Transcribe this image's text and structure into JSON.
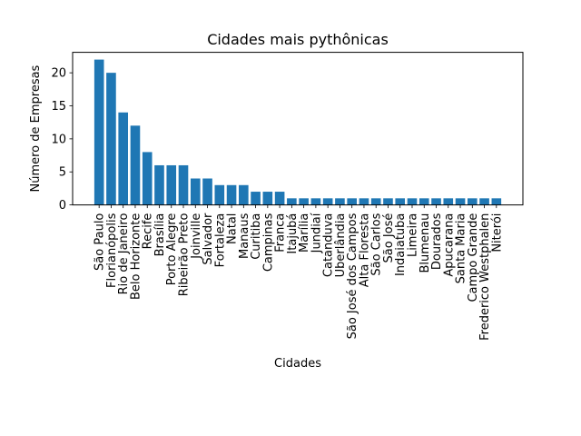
{
  "chart_data": {
    "type": "bar",
    "title": "Cidades mais pythônicas",
    "xlabel": "Cidades",
    "ylabel": "Número de Empresas",
    "ylim": [
      0,
      23.1
    ],
    "yticks": [
      0,
      5,
      10,
      15,
      20
    ],
    "bar_color": "#1f77b4",
    "grid": false,
    "categories": [
      "São Paulo",
      "Florianópolis",
      "Rio de Janeiro",
      "Belo Horizonte",
      "Recife",
      "Brasília",
      "Porto Alegre",
      "Ribeirão Preto",
      "Joinville",
      "Salvador",
      "Fortaleza",
      "Natal",
      "Manaus",
      "Curitiba",
      "Campinas",
      "Franca",
      "Itajubá",
      "Marília",
      "Jundiaí",
      "Catanduva",
      "Uberlândia",
      "São José dos Campos",
      "Alta Floresta",
      "São Carlos",
      "São José",
      "Indaiatuba",
      "Limeira",
      "Blumenau",
      "Dourados",
      "Apucarana",
      "Santa Maria",
      "Campo Grande",
      "Frederico Westphalen",
      "Niterói"
    ],
    "values": [
      22,
      20,
      14,
      12,
      8,
      6,
      6,
      6,
      4,
      4,
      3,
      3,
      3,
      2,
      2,
      2,
      1,
      1,
      1,
      1,
      1,
      1,
      1,
      1,
      1,
      1,
      1,
      1,
      1,
      1,
      1,
      1,
      1,
      1
    ]
  }
}
